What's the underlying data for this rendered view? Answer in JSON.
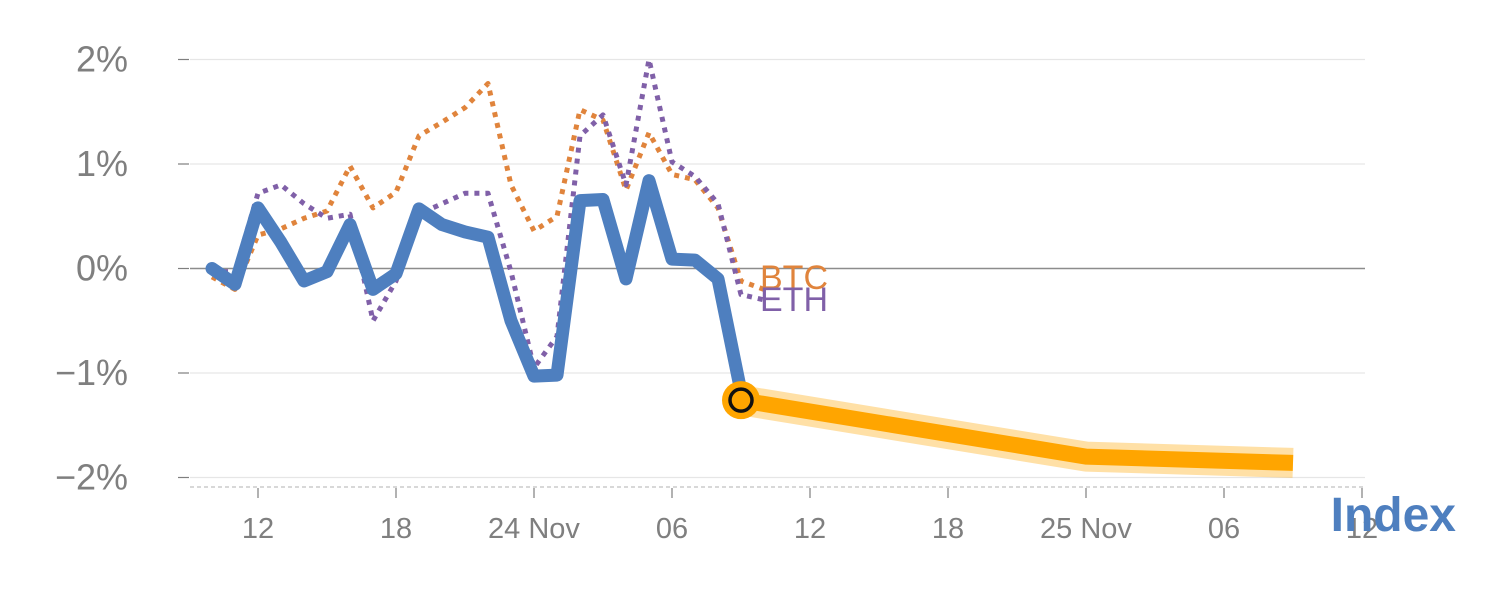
{
  "chart_data": {
    "type": "line",
    "xlabel": "Index",
    "ylabel": "",
    "y_tick_labels": [
      "2%",
      "1%",
      "0%",
      "−1%",
      "−2%"
    ],
    "y_ticks": [
      2,
      1,
      0,
      -1,
      -2
    ],
    "ylim": [
      -2.1,
      2.1
    ],
    "x_tick_labels": [
      "12",
      "18",
      "24 Nov",
      "06",
      "12",
      "18",
      "25 Nov",
      "06",
      "12"
    ],
    "grid": true,
    "legend": "inline labels at end of series",
    "series": [
      {
        "name": "Index",
        "style": "solid",
        "color": "#4e7fbf",
        "values": [
          0.0,
          -0.15,
          0.58,
          0.25,
          -0.12,
          -0.03,
          0.42,
          -0.2,
          -0.05,
          0.57,
          0.42,
          0.35,
          0.3,
          -0.5,
          -1.03,
          -1.02,
          0.65,
          0.66,
          -0.1,
          0.84,
          0.09,
          0.08,
          -0.1,
          -1.18
        ]
      },
      {
        "name": "BTC",
        "style": "dotted",
        "color": "#e0843c",
        "values": [
          -0.08,
          -0.2,
          0.32,
          0.38,
          0.48,
          0.55,
          0.98,
          0.58,
          0.73,
          1.27,
          1.4,
          1.54,
          1.77,
          0.8,
          0.36,
          0.5,
          1.52,
          1.42,
          0.75,
          1.3,
          0.9,
          0.85,
          0.58,
          -0.12,
          -0.2
        ]
      },
      {
        "name": "ETH",
        "style": "dotted",
        "color": "#8060a8",
        "values": [
          -0.03,
          -0.03,
          0.72,
          0.8,
          0.62,
          0.48,
          0.52,
          -0.5,
          -0.12,
          0.52,
          0.62,
          0.72,
          0.72,
          -0.03,
          -0.95,
          -0.65,
          1.27,
          1.47,
          0.8,
          2.0,
          1.02,
          0.88,
          0.62,
          -0.25,
          -0.3
        ]
      },
      {
        "name": "",
        "style": "forecast",
        "color": "#ffa500",
        "points": [
          [
            23,
            -1.26
          ],
          [
            38,
            -1.8
          ],
          [
            47,
            -1.86
          ]
        ]
      }
    ],
    "marker": {
      "x": 23,
      "y": -1.26
    }
  }
}
